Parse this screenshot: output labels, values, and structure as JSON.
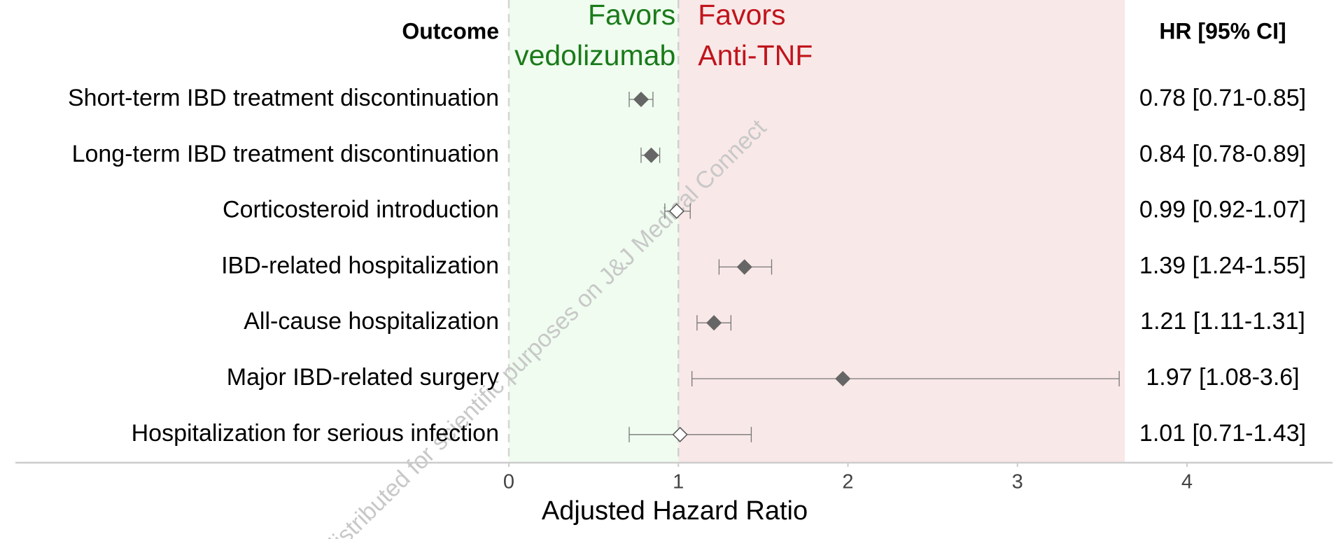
{
  "chart_data": {
    "type": "forest",
    "header_outcome": "Outcome",
    "header_hr": "HR [95% CI]",
    "favors_left": [
      "Favors",
      "vedolizumab"
    ],
    "favors_right": [
      "Favors",
      "Anti-TNF"
    ],
    "left_color": "#1a7a1a",
    "right_color": "#c0141c",
    "left_band_color": "#effcef",
    "right_band_color": "#f9e8e8",
    "watermark": "distributed for scientific purposes on J&J Medical Connect",
    "x_label": "Adjusted Hazard Ratio",
    "categories": [
      "Short-term IBD treatment discontinuation",
      "Long-term IBD treatment discontinuation",
      "Corticosteroid introduction",
      "IBD-related hospitalization",
      "All-cause hospitalization",
      "Major IBD-related surgery",
      "Hospitalization for serious infection"
    ],
    "values": [
      0.78,
      0.84,
      0.99,
      1.39,
      1.21,
      1.97,
      1.01
    ],
    "lower": [
      0.71,
      0.78,
      0.92,
      1.24,
      1.11,
      1.08,
      0.71
    ],
    "upper": [
      0.85,
      0.89,
      1.07,
      1.55,
      1.31,
      3.6,
      1.43
    ],
    "value_labels": [
      "0.78 [0.71-0.85]",
      "0.84 [0.78-0.89]",
      "0.99 [0.92-1.07]",
      "1.39 [1.24-1.55]",
      "1.21 [1.11-1.31]",
      "1.97 [1.08-3.6]",
      "1.01 [0.71-1.43]"
    ],
    "filled": [
      true,
      true,
      false,
      true,
      true,
      true,
      false
    ],
    "marker_color": "#666666",
    "reference": 1,
    "xlim": [
      0,
      4
    ],
    "xticks": [
      0,
      1,
      2,
      3,
      4
    ]
  }
}
